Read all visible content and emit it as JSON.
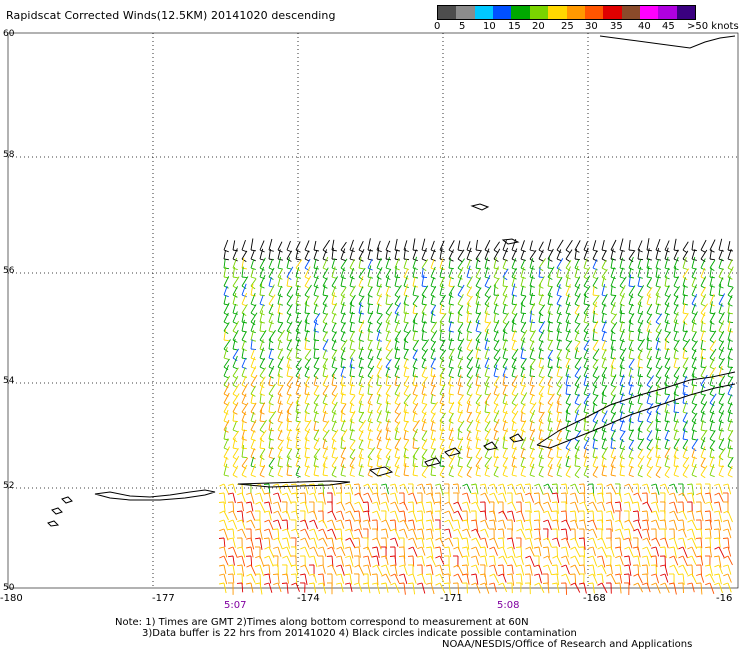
{
  "title": "Rapidscat Corrected Winds(12.5KM) 20141020 descending",
  "legend": {
    "colors": [
      "#4d4d4d",
      "#8c8c8c",
      "#00c8ff",
      "#0050ff",
      "#00a800",
      "#7ad400",
      "#ffd800",
      "#ff9900",
      "#ff5500",
      "#e00000",
      "#8a4a2a",
      "#ff00ff",
      "#b000e0",
      "#3a0080"
    ],
    "labels": [
      "0",
      "5",
      "10",
      "15",
      "20",
      "25",
      "30",
      "35",
      "40",
      "45",
      ">50 knots"
    ]
  },
  "map": {
    "lat_labels": [
      "60",
      "58",
      "56",
      "54",
      "52",
      "50"
    ],
    "lon_labels": [
      "-180",
      "-177",
      "-174",
      "-171",
      "-168",
      "-16"
    ],
    "time_labels": [
      "5:07",
      "5:08"
    ],
    "time_color": "#8000a0"
  },
  "notes": {
    "line1": "Note: 1) Times are GMT 2)Times along bottom correspond to measurement at 60N",
    "line2": "3)Data buffer is 22 hrs from 20141020 4) Black circles indicate possible contamination",
    "line3": "NOAA/NESDIS/Office of Research and Applications"
  }
}
